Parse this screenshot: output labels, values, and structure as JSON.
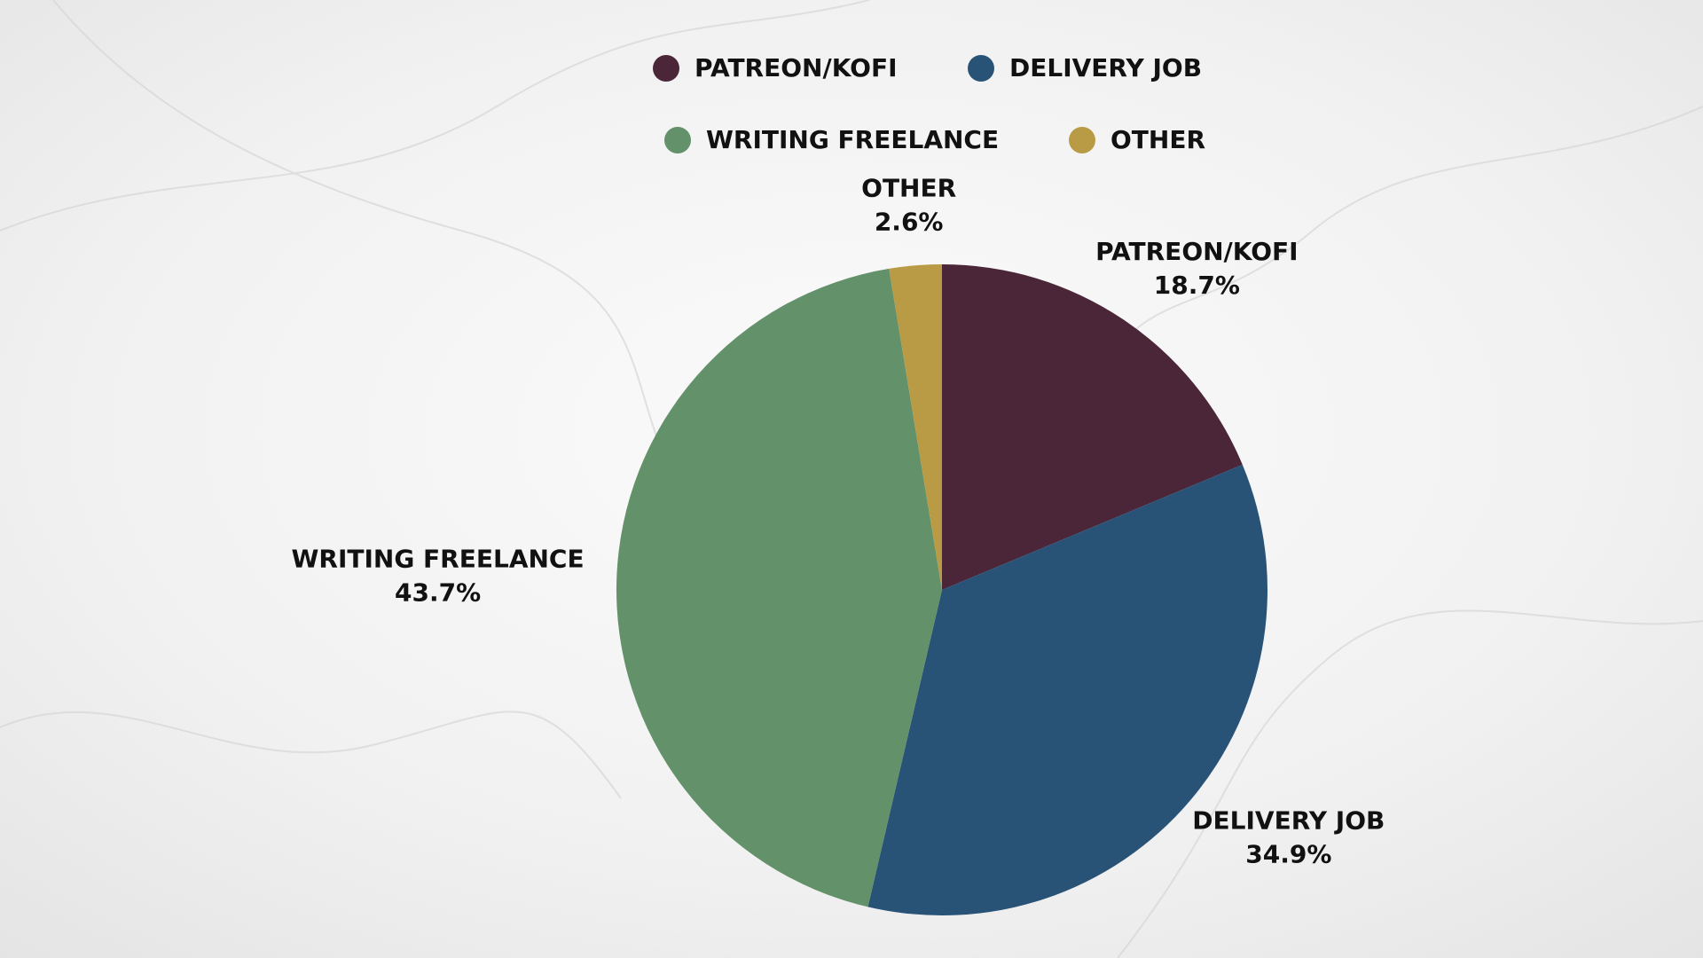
{
  "chart_data": {
    "type": "pie",
    "categories": [
      "PATREON/KOFI",
      "DELIVERY JOB",
      "WRITING FREELANCE",
      "OTHER"
    ],
    "values": [
      18.7,
      34.9,
      43.7,
      2.6
    ],
    "value_labels": [
      "18.7%",
      "34.9%",
      "43.7%",
      "2.6%"
    ],
    "colors": [
      "#4b2638",
      "#285377",
      "#62916a",
      "#b99a45"
    ],
    "legend": "top"
  }
}
